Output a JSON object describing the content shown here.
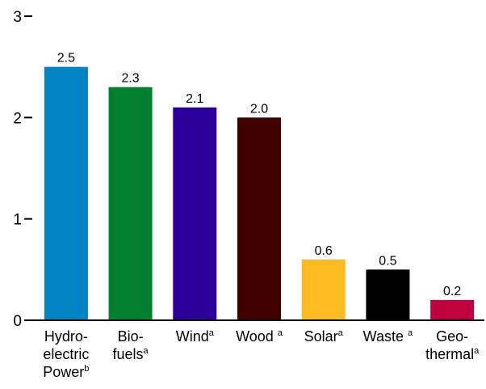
{
  "chart_data": {
    "type": "bar",
    "categories": [
      {
        "lines": [
          "Hydro-",
          "electric",
          "Power"
        ],
        "sup": "b"
      },
      {
        "lines": [
          "Bio-",
          "fuels"
        ],
        "sup": "a"
      },
      {
        "lines": [
          "Wind"
        ],
        "sup": "a"
      },
      {
        "lines": [
          "Wood "
        ],
        "sup": "a"
      },
      {
        "lines": [
          "Solar"
        ],
        "sup": "a"
      },
      {
        "lines": [
          "Waste "
        ],
        "sup": "a"
      },
      {
        "lines": [
          "Geo-",
          "thermal"
        ],
        "sup": "a"
      }
    ],
    "values": [
      2.5,
      2.3,
      2.1,
      2.0,
      0.6,
      0.5,
      0.2
    ],
    "value_labels": [
      "2.5",
      "2.3",
      "2.1",
      "2.0",
      "0.6",
      "0.5",
      "0.2"
    ],
    "colors": [
      "#0083c3",
      "#00802f",
      "#2a0099",
      "#400000",
      "#ffbb22",
      "#000000",
      "#c0003c"
    ],
    "yticks": [
      0,
      1,
      2,
      3
    ],
    "ytick_labels": [
      "0",
      "1",
      "2",
      "3"
    ],
    "ylim": [
      0,
      3
    ],
    "grid": false,
    "legend": "none"
  }
}
